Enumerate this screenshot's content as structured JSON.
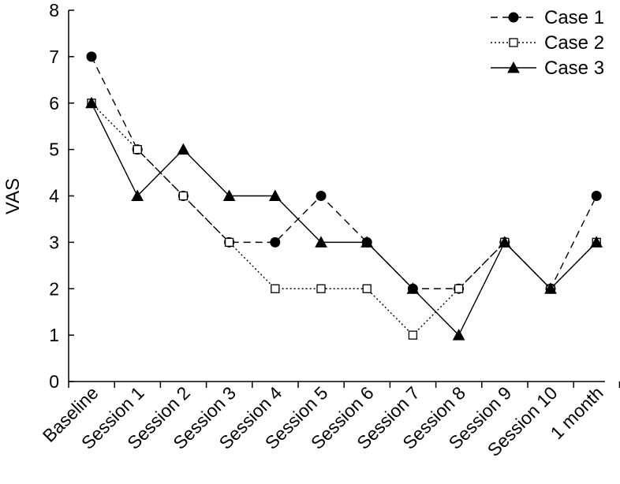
{
  "chart_data": {
    "type": "line",
    "title": "",
    "xlabel": "",
    "ylabel": "VAS",
    "ylim": [
      0,
      8
    ],
    "yticks": [
      0,
      1,
      2,
      3,
      4,
      5,
      6,
      7,
      8
    ],
    "grid": false,
    "legend_position": "top-right",
    "categories": [
      "Baseline",
      "Session 1",
      "Session 2",
      "Session 3",
      "Session 4",
      "Session 5",
      "Session 6",
      "Session 7",
      "Session 8",
      "Session 9",
      "Session 10",
      "1 month"
    ],
    "series": [
      {
        "name": "Case 1",
        "marker": "filled-circle",
        "line_style": "dashed",
        "color": "#000000",
        "values": [
          7,
          5,
          4,
          3,
          3,
          4,
          3,
          2,
          2,
          3,
          2,
          4
        ]
      },
      {
        "name": "Case 2",
        "marker": "open-square",
        "line_style": "dotted",
        "color": "#000000",
        "values": [
          6,
          5,
          4,
          3,
          2,
          2,
          2,
          1,
          2,
          3,
          2,
          3
        ]
      },
      {
        "name": "Case 3",
        "marker": "filled-triangle",
        "line_style": "solid",
        "color": "#000000",
        "values": [
          6,
          4,
          5,
          4,
          4,
          3,
          3,
          2,
          1,
          3,
          2,
          3
        ]
      }
    ]
  }
}
